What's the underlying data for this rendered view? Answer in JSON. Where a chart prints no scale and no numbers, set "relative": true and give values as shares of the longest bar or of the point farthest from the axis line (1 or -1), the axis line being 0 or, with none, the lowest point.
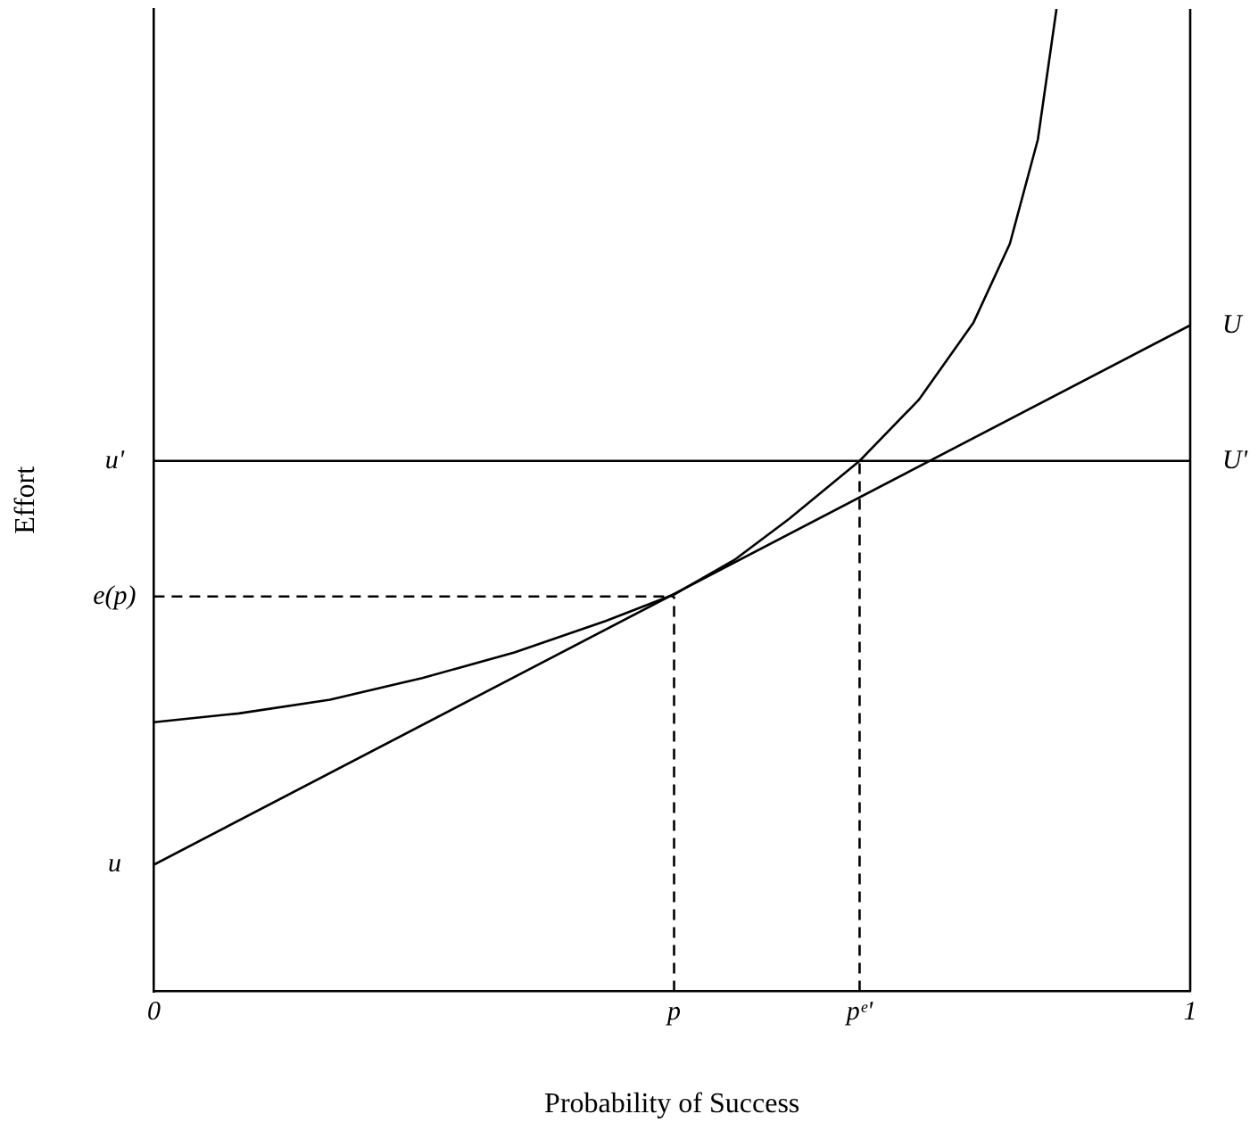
{
  "chart_data": {
    "type": "line",
    "relative": true,
    "xlabel": "Probability of Success",
    "ylabel": "Effort",
    "xlim": [
      0,
      1
    ],
    "xticks": [
      0,
      {
        "value": 0.502,
        "label": "p"
      },
      {
        "value": 0.681,
        "label": "pᵉ'"
      },
      1
    ],
    "legend": false,
    "grid": false,
    "marker": "none",
    "series": [
      {
        "color": "#000000",
        "x": [
          0,
          0.082,
          0.17,
          0.259,
          0.348,
          0.436,
          0.502,
          0.56,
          0.613,
          0.681,
          0.738,
          0.791,
          0.826,
          0.853,
          0.871
        ],
        "values": [
          0.274,
          0.283,
          0.297,
          0.319,
          0.345,
          0.377,
          0.404,
          0.439,
          0.481,
          0.54,
          0.602,
          0.681,
          0.761,
          0.867,
          1
        ]
      },
      {
        "name": "U",
        "color": "#000000",
        "x": [
          0,
          1
        ],
        "values": [
          0.129,
          0.678
        ]
      },
      {
        "name": "U'",
        "color": "#000000",
        "x": [
          0,
          1
        ],
        "values": [
          0.54,
          0.54
        ]
      },
      {
        "color": "#000000",
        "line_style": "dashed",
        "x": [
          0,
          0.502
        ],
        "values": [
          0.402,
          0.402
        ]
      },
      {
        "color": "#000000",
        "line_style": "dashed",
        "x": [
          0.502,
          0.502
        ],
        "values": [
          0,
          0.402
        ]
      },
      {
        "color": "#000000",
        "line_style": "dashed",
        "x": [
          0.681,
          0.681
        ],
        "values": [
          0,
          0.54
        ]
      }
    ],
    "annotations": [
      "u'",
      "e(p)",
      "u"
    ]
  }
}
